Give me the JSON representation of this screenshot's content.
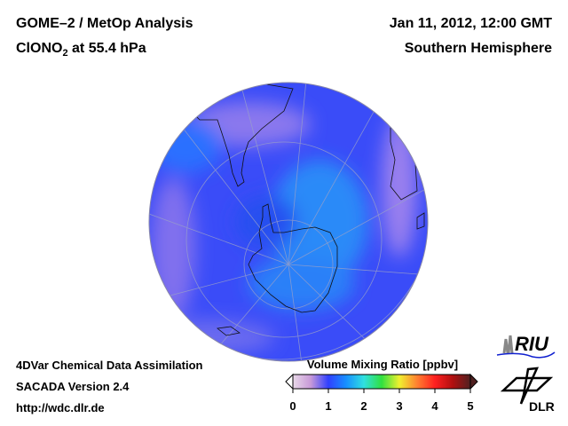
{
  "header": {
    "title": "GOME–2 / MetOp Analysis",
    "species": "ClONO",
    "species_sub": "2",
    "level": " at 55.4 hPa",
    "datetime": "Jan 11, 2012, 12:00 GMT",
    "region": "Southern Hemisphere"
  },
  "footer": {
    "line1": "4DVar Chemical Data Assimilation",
    "line2": "SACADA Version 2.4",
    "line3": "http://wdc.dlr.de"
  },
  "colorbar": {
    "title": "Volume Mixing Ratio [ppbv]",
    "ticks": [
      "0",
      "1",
      "2",
      "3",
      "4",
      "5"
    ],
    "min": 0,
    "max": 5,
    "colors": [
      "#e8d8e8",
      "#c89ad8",
      "#3040ff",
      "#1890ff",
      "#30e0e0",
      "#30e040",
      "#f0f030",
      "#ff8030",
      "#ff2020",
      "#b01010",
      "#502020"
    ]
  },
  "logos": {
    "riu": "RIU",
    "dlr": "DLR"
  }
}
